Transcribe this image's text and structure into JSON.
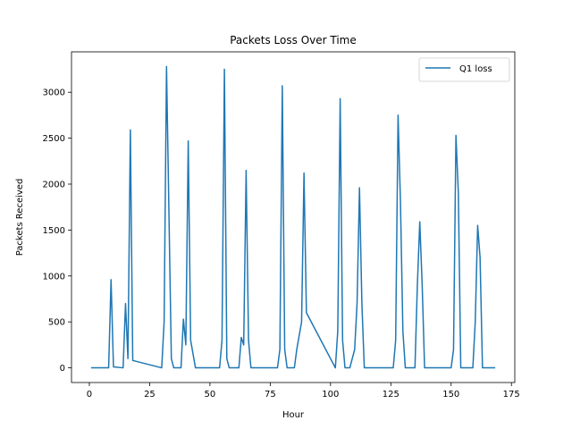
{
  "chart_data": {
    "type": "line",
    "title": "Packets Loss Over Time",
    "xlabel": "Hour",
    "ylabel": "Packets Received",
    "xlim": [
      -7.4,
      176.4
    ],
    "ylim": [
      -160,
      3440
    ],
    "xticks": [
      0,
      25,
      50,
      75,
      100,
      125,
      150,
      175
    ],
    "yticks": [
      0,
      500,
      1000,
      1500,
      2000,
      2500,
      3000
    ],
    "grid": false,
    "legend_position": "top-right",
    "series": [
      {
        "name": "Q1 loss",
        "color": "#1f77b4",
        "x": [
          1,
          8,
          9,
          10,
          14,
          15,
          16,
          17,
          18,
          30,
          31,
          32,
          34,
          35,
          38,
          39,
          40,
          41,
          42,
          44,
          54,
          55,
          56,
          57,
          58,
          62,
          63,
          64,
          65,
          66,
          67,
          78,
          79,
          80,
          81,
          82,
          85,
          86,
          88,
          89,
          90,
          102,
          103,
          104,
          105,
          106,
          108,
          110,
          111,
          112,
          113,
          114,
          115,
          126,
          127,
          128,
          129,
          130,
          131,
          134,
          135,
          136,
          137,
          138,
          139,
          150,
          151,
          152,
          153,
          154,
          155,
          159,
          160,
          161,
          162,
          163,
          168
        ],
        "values": [
          0,
          0,
          960,
          10,
          0,
          700,
          100,
          2590,
          80,
          0,
          500,
          3280,
          100,
          0,
          0,
          530,
          250,
          2470,
          300,
          0,
          0,
          300,
          3250,
          100,
          0,
          0,
          330,
          250,
          2150,
          300,
          0,
          0,
          200,
          3070,
          200,
          0,
          0,
          200,
          500,
          2120,
          600,
          0,
          400,
          2930,
          300,
          0,
          0,
          200,
          700,
          1960,
          700,
          0,
          0,
          0,
          300,
          2750,
          1800,
          400,
          0,
          0,
          0,
          900,
          1590,
          900,
          0,
          0,
          200,
          2530,
          1900,
          0,
          0,
          0,
          500,
          1550,
          1200,
          0,
          0
        ]
      }
    ]
  }
}
